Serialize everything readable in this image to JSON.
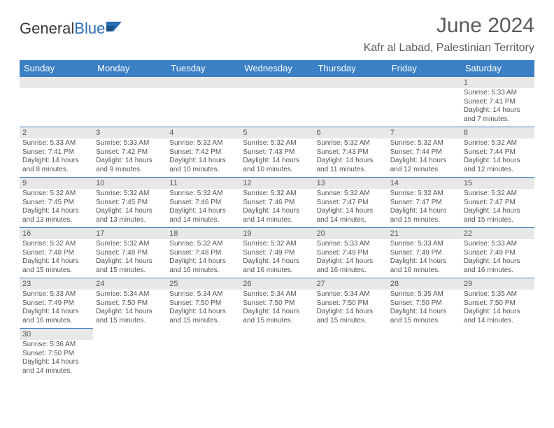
{
  "brand": {
    "part1": "General",
    "part2": "Blue"
  },
  "header": {
    "month_title": "June 2024",
    "location": "Kafr al Labad, Palestinian Territory"
  },
  "colors": {
    "header_bg": "#3b7fc4",
    "header_text": "#ffffff",
    "daynum_bg": "#e8e8e8",
    "cell_border": "#3b7fc4",
    "text": "#555555",
    "brand_blue": "#2a6db5"
  },
  "day_names": [
    "Sunday",
    "Monday",
    "Tuesday",
    "Wednesday",
    "Thursday",
    "Friday",
    "Saturday"
  ],
  "weeks": [
    [
      null,
      null,
      null,
      null,
      null,
      null,
      {
        "n": "1",
        "sunrise": "Sunrise: 5:33 AM",
        "sunset": "Sunset: 7:41 PM",
        "daylight": "Daylight: 14 hours and 7 minutes."
      }
    ],
    [
      {
        "n": "2",
        "sunrise": "Sunrise: 5:33 AM",
        "sunset": "Sunset: 7:41 PM",
        "daylight": "Daylight: 14 hours and 8 minutes."
      },
      {
        "n": "3",
        "sunrise": "Sunrise: 5:33 AM",
        "sunset": "Sunset: 7:42 PM",
        "daylight": "Daylight: 14 hours and 9 minutes."
      },
      {
        "n": "4",
        "sunrise": "Sunrise: 5:32 AM",
        "sunset": "Sunset: 7:42 PM",
        "daylight": "Daylight: 14 hours and 10 minutes."
      },
      {
        "n": "5",
        "sunrise": "Sunrise: 5:32 AM",
        "sunset": "Sunset: 7:43 PM",
        "daylight": "Daylight: 14 hours and 10 minutes."
      },
      {
        "n": "6",
        "sunrise": "Sunrise: 5:32 AM",
        "sunset": "Sunset: 7:43 PM",
        "daylight": "Daylight: 14 hours and 11 minutes."
      },
      {
        "n": "7",
        "sunrise": "Sunrise: 5:32 AM",
        "sunset": "Sunset: 7:44 PM",
        "daylight": "Daylight: 14 hours and 12 minutes."
      },
      {
        "n": "8",
        "sunrise": "Sunrise: 5:32 AM",
        "sunset": "Sunset: 7:44 PM",
        "daylight": "Daylight: 14 hours and 12 minutes."
      }
    ],
    [
      {
        "n": "9",
        "sunrise": "Sunrise: 5:32 AM",
        "sunset": "Sunset: 7:45 PM",
        "daylight": "Daylight: 14 hours and 13 minutes."
      },
      {
        "n": "10",
        "sunrise": "Sunrise: 5:32 AM",
        "sunset": "Sunset: 7:45 PM",
        "daylight": "Daylight: 14 hours and 13 minutes."
      },
      {
        "n": "11",
        "sunrise": "Sunrise: 5:32 AM",
        "sunset": "Sunset: 7:46 PM",
        "daylight": "Daylight: 14 hours and 14 minutes."
      },
      {
        "n": "12",
        "sunrise": "Sunrise: 5:32 AM",
        "sunset": "Sunset: 7:46 PM",
        "daylight": "Daylight: 14 hours and 14 minutes."
      },
      {
        "n": "13",
        "sunrise": "Sunrise: 5:32 AM",
        "sunset": "Sunset: 7:47 PM",
        "daylight": "Daylight: 14 hours and 14 minutes."
      },
      {
        "n": "14",
        "sunrise": "Sunrise: 5:32 AM",
        "sunset": "Sunset: 7:47 PM",
        "daylight": "Daylight: 14 hours and 15 minutes."
      },
      {
        "n": "15",
        "sunrise": "Sunrise: 5:32 AM",
        "sunset": "Sunset: 7:47 PM",
        "daylight": "Daylight: 14 hours and 15 minutes."
      }
    ],
    [
      {
        "n": "16",
        "sunrise": "Sunrise: 5:32 AM",
        "sunset": "Sunset: 7:48 PM",
        "daylight": "Daylight: 14 hours and 15 minutes."
      },
      {
        "n": "17",
        "sunrise": "Sunrise: 5:32 AM",
        "sunset": "Sunset: 7:48 PM",
        "daylight": "Daylight: 14 hours and 15 minutes."
      },
      {
        "n": "18",
        "sunrise": "Sunrise: 5:32 AM",
        "sunset": "Sunset: 7:48 PM",
        "daylight": "Daylight: 14 hours and 16 minutes."
      },
      {
        "n": "19",
        "sunrise": "Sunrise: 5:32 AM",
        "sunset": "Sunset: 7:49 PM",
        "daylight": "Daylight: 14 hours and 16 minutes."
      },
      {
        "n": "20",
        "sunrise": "Sunrise: 5:33 AM",
        "sunset": "Sunset: 7:49 PM",
        "daylight": "Daylight: 14 hours and 16 minutes."
      },
      {
        "n": "21",
        "sunrise": "Sunrise: 5:33 AM",
        "sunset": "Sunset: 7:49 PM",
        "daylight": "Daylight: 14 hours and 16 minutes."
      },
      {
        "n": "22",
        "sunrise": "Sunrise: 5:33 AM",
        "sunset": "Sunset: 7:49 PM",
        "daylight": "Daylight: 14 hours and 16 minutes."
      }
    ],
    [
      {
        "n": "23",
        "sunrise": "Sunrise: 5:33 AM",
        "sunset": "Sunset: 7:49 PM",
        "daylight": "Daylight: 14 hours and 16 minutes."
      },
      {
        "n": "24",
        "sunrise": "Sunrise: 5:34 AM",
        "sunset": "Sunset: 7:50 PM",
        "daylight": "Daylight: 14 hours and 15 minutes."
      },
      {
        "n": "25",
        "sunrise": "Sunrise: 5:34 AM",
        "sunset": "Sunset: 7:50 PM",
        "daylight": "Daylight: 14 hours and 15 minutes."
      },
      {
        "n": "26",
        "sunrise": "Sunrise: 5:34 AM",
        "sunset": "Sunset: 7:50 PM",
        "daylight": "Daylight: 14 hours and 15 minutes."
      },
      {
        "n": "27",
        "sunrise": "Sunrise: 5:34 AM",
        "sunset": "Sunset: 7:50 PM",
        "daylight": "Daylight: 14 hours and 15 minutes."
      },
      {
        "n": "28",
        "sunrise": "Sunrise: 5:35 AM",
        "sunset": "Sunset: 7:50 PM",
        "daylight": "Daylight: 14 hours and 15 minutes."
      },
      {
        "n": "29",
        "sunrise": "Sunrise: 5:35 AM",
        "sunset": "Sunset: 7:50 PM",
        "daylight": "Daylight: 14 hours and 14 minutes."
      }
    ],
    [
      {
        "n": "30",
        "sunrise": "Sunrise: 5:36 AM",
        "sunset": "Sunset: 7:50 PM",
        "daylight": "Daylight: 14 hours and 14 minutes."
      },
      null,
      null,
      null,
      null,
      null,
      null
    ]
  ]
}
